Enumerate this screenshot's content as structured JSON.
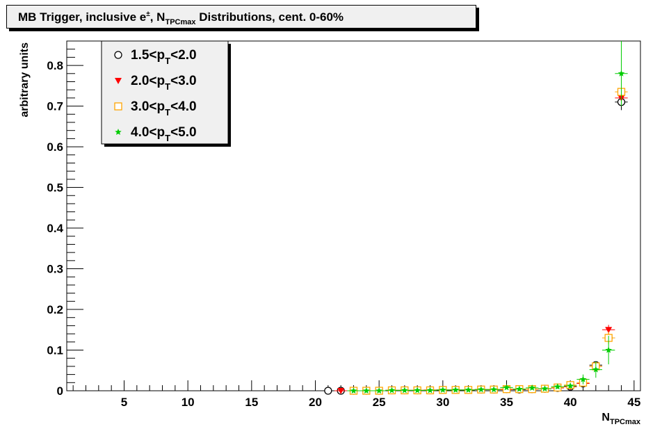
{
  "title": {
    "main": "MB Trigger, inclusive e",
    "sup": "±",
    "mid": ", N",
    "sub": "TPCmax",
    "end": " Distributions, cent.  0-60%"
  },
  "chart_data": {
    "type": "scatter",
    "xlabel": "N",
    "xlabel_sub": "TPCmax",
    "ylabel": "arbitrary units",
    "xlim": [
      0.5,
      45.5
    ],
    "ylim": [
      0,
      0.86
    ],
    "xticks": [
      5,
      10,
      15,
      20,
      25,
      30,
      35,
      40,
      45
    ],
    "yticks": [
      0,
      0.1,
      0.2,
      0.3,
      0.4,
      0.5,
      0.6,
      0.7,
      0.8
    ],
    "grid": false,
    "legend_position": "top-left",
    "series": [
      {
        "name": "1.5<p_T<2.0",
        "legend": {
          "pre": "1.5<p",
          "sub": "T",
          "post": "<2.0"
        },
        "marker": "open-circle",
        "color": "#000000",
        "x": [
          21,
          22,
          23,
          24,
          25,
          26,
          27,
          28,
          29,
          30,
          31,
          32,
          33,
          34,
          35,
          36,
          37,
          38,
          39,
          40,
          41,
          42,
          43,
          44
        ],
        "y": [
          0.0,
          0.0,
          0.0,
          0.0,
          0.0,
          0.001,
          0.001,
          0.001,
          0.001,
          0.002,
          0.002,
          0.002,
          0.003,
          0.003,
          0.004,
          0.003,
          0.004,
          0.005,
          0.007,
          0.01,
          0.018,
          0.063,
          0.13,
          0.71
        ],
        "yerr": [
          0.002,
          0.002,
          0.002,
          0.002,
          0.002,
          0.002,
          0.002,
          0.002,
          0.002,
          0.002,
          0.002,
          0.002,
          0.002,
          0.002,
          0.002,
          0.002,
          0.002,
          0.002,
          0.003,
          0.003,
          0.004,
          0.006,
          0.01,
          0.02
        ]
      },
      {
        "name": "2.0<p_T<3.0",
        "legend": {
          "pre": "2.0<p",
          "sub": "T",
          "post": "<3.0"
        },
        "marker": "filled-triangle-down",
        "color": "#ff0000",
        "x": [
          22,
          23,
          24,
          25,
          26,
          27,
          28,
          29,
          30,
          31,
          32,
          33,
          34,
          35,
          36,
          37,
          38,
          39,
          40,
          41,
          42,
          43,
          44
        ],
        "y": [
          0.0,
          0.0,
          0.0,
          0.0,
          0.001,
          0.001,
          0.001,
          0.002,
          0.002,
          0.002,
          0.002,
          0.003,
          0.003,
          0.003,
          0.004,
          0.004,
          0.005,
          0.007,
          0.01,
          0.018,
          0.06,
          0.15,
          0.72
        ],
        "yerr": [
          0.002,
          0.002,
          0.002,
          0.002,
          0.002,
          0.002,
          0.002,
          0.002,
          0.002,
          0.002,
          0.002,
          0.002,
          0.002,
          0.002,
          0.002,
          0.002,
          0.002,
          0.002,
          0.003,
          0.004,
          0.006,
          0.012,
          0.02
        ]
      },
      {
        "name": "3.0<p_T<4.0",
        "legend": {
          "pre": "3.0<p",
          "sub": "T",
          "post": "<4.0"
        },
        "marker": "open-square",
        "color": "#ffa500",
        "x": [
          23,
          24,
          25,
          26,
          27,
          28,
          29,
          30,
          31,
          32,
          33,
          34,
          35,
          36,
          37,
          38,
          39,
          40,
          41,
          42,
          43,
          44
        ],
        "y": [
          0.0,
          0.0,
          0.0,
          0.001,
          0.001,
          0.001,
          0.001,
          0.002,
          0.002,
          0.002,
          0.003,
          0.003,
          0.004,
          0.004,
          0.004,
          0.005,
          0.008,
          0.014,
          0.02,
          0.06,
          0.13,
          0.735
        ],
        "yerr": [
          0.002,
          0.002,
          0.002,
          0.002,
          0.002,
          0.002,
          0.002,
          0.002,
          0.002,
          0.002,
          0.002,
          0.002,
          0.002,
          0.002,
          0.002,
          0.002,
          0.003,
          0.004,
          0.005,
          0.008,
          0.015,
          0.03
        ]
      },
      {
        "name": "4.0<p_T<5.0",
        "legend": {
          "pre": "4.0<p",
          "sub": "T",
          "post": "<5.0"
        },
        "marker": "filled-star",
        "color": "#00cc00",
        "x": [
          23,
          24,
          25,
          26,
          27,
          28,
          29,
          30,
          31,
          32,
          33,
          34,
          35,
          36,
          37,
          38,
          39,
          40,
          41,
          42,
          43,
          44
        ],
        "y": [
          0.0,
          0.0,
          0.0,
          0.001,
          0.001,
          0.001,
          0.001,
          0.002,
          0.002,
          0.002,
          0.003,
          0.003,
          0.008,
          0.004,
          0.007,
          0.005,
          0.01,
          0.012,
          0.028,
          0.052,
          0.1,
          0.78
        ],
        "yerr": [
          0.002,
          0.002,
          0.002,
          0.002,
          0.002,
          0.002,
          0.002,
          0.002,
          0.002,
          0.002,
          0.002,
          0.002,
          0.004,
          0.003,
          0.003,
          0.003,
          0.005,
          0.006,
          0.012,
          0.02,
          0.035,
          0.08
        ]
      }
    ]
  }
}
